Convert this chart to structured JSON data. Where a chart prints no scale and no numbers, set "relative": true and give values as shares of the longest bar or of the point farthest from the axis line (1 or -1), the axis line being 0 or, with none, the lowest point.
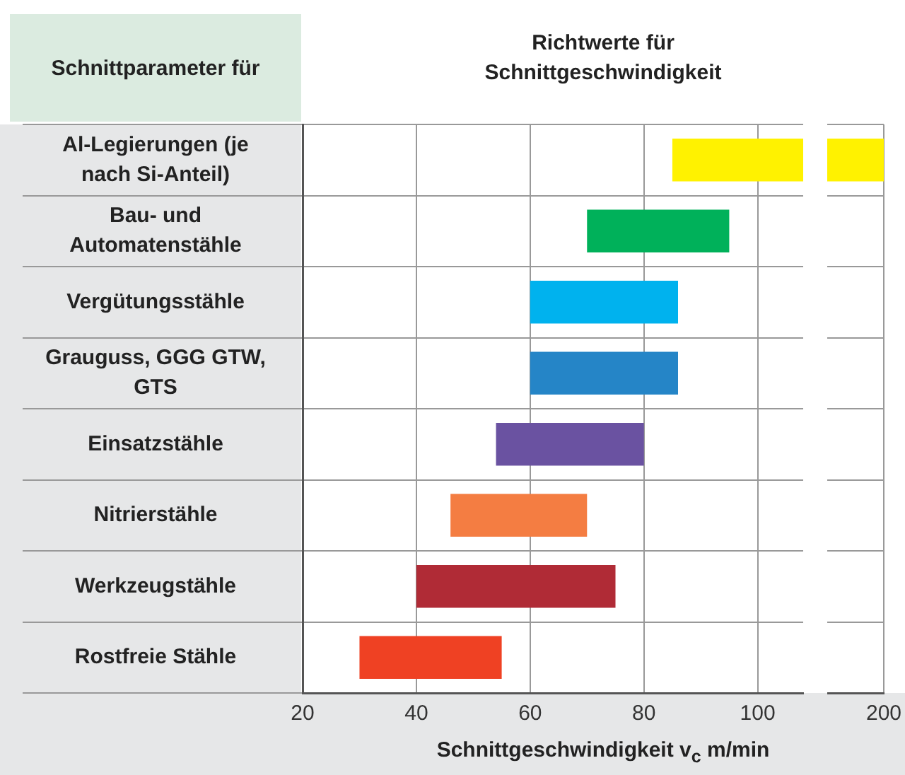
{
  "chart_data": [
    {
      "type": "bar",
      "orientation": "horizontal",
      "title": "Richtwerte für Schnittgeschwindigkeit",
      "ylabel": "Schnittparameter für",
      "xlabel": "Schnittgeschwindigkeit v$_{c}$ m/min",
      "categories": [
        "Al-Legierungen (je nach Si-Anteil)",
        "Bau- und Automatenstähle",
        "Vergütungsstähle",
        "Grauguss, GGG GTW, GTS",
        "Einsatzstähle",
        "Nitrierstähle",
        "Werkzeugstähle",
        "Rostfreie Stähle"
      ],
      "base": [
        85,
        70,
        60,
        60,
        54,
        46,
        40,
        30
      ],
      "values": [
        23,
        25,
        26,
        26,
        26,
        24,
        35,
        25
      ],
      "colors": [
        "#fff200",
        "#00b15a",
        "#00b2ee",
        "#2585c7",
        "#6a52a1",
        "#f47d42",
        "#b02b36",
        "#ef4123"
      ],
      "xlim": [
        20,
        108
      ],
      "xticks": [
        20,
        40,
        60,
        80,
        100
      ],
      "grid": true
    },
    {
      "type": "bar",
      "orientation": "horizontal",
      "relative": true,
      "categories": [
        null,
        null,
        null,
        null,
        null,
        null,
        null,
        null
      ],
      "values": [
        1,
        null,
        null,
        null,
        null,
        null,
        null,
        null
      ],
      "colors": [
        "#fff200",
        "#00b15a",
        "#00b2ee",
        "#2585c7",
        "#6a52a1",
        "#f47d42",
        "#b02b36",
        "#ef4123"
      ],
      "annotations": [
        "200"
      ],
      "grid": true
    }
  ]
}
